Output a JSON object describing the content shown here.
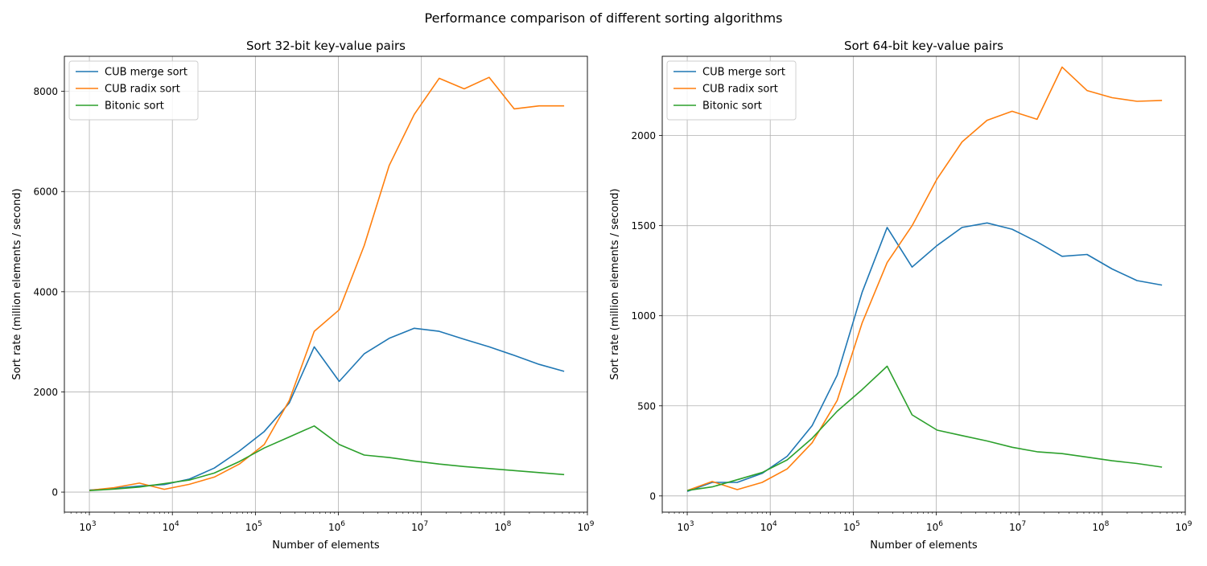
{
  "figure": {
    "suptitle": "Performance comparison of different sorting algorithms"
  },
  "chart_data": [
    {
      "type": "line",
      "title": "Sort 32-bit key-value pairs",
      "xlabel": "Number of elements",
      "ylabel": "Sort rate (million elements / second)",
      "xscale": "log",
      "xlim": [
        500,
        1000000000
      ],
      "ylim": [
        -400,
        8700
      ],
      "xticks": [
        1000,
        10000,
        100000,
        1000000,
        10000000,
        100000000,
        1000000000
      ],
      "xtick_labels": [
        {
          "base": "10",
          "exp": "3"
        },
        {
          "base": "10",
          "exp": "4"
        },
        {
          "base": "10",
          "exp": "5"
        },
        {
          "base": "10",
          "exp": "6"
        },
        {
          "base": "10",
          "exp": "7"
        },
        {
          "base": "10",
          "exp": "8"
        },
        {
          "base": "10",
          "exp": "9"
        }
      ],
      "yticks": [
        0,
        2000,
        4000,
        6000,
        8000
      ],
      "ytick_labels": [
        "0",
        "2000",
        "4000",
        "6000",
        "8000"
      ],
      "grid": true,
      "legend_position": "top-left",
      "x": [
        1000,
        2000,
        4000,
        8000,
        16000,
        32000,
        64000,
        128000,
        256000,
        512000,
        1024000,
        2048000,
        4096000,
        8192000,
        16384000,
        32768000,
        65536000,
        131072000,
        262144000,
        524288000
      ],
      "series": [
        {
          "name": "CUB merge sort",
          "color": "#1f77b4",
          "values": [
            40,
            75,
            120,
            150,
            260,
            480,
            820,
            1210,
            1780,
            2900,
            2210,
            2760,
            3070,
            3270,
            3210,
            3050,
            2900,
            2730,
            2550,
            2410
          ]
        },
        {
          "name": "CUB radix sort",
          "color": "#ff7f0e",
          "values": [
            35,
            90,
            180,
            55,
            155,
            300,
            560,
            950,
            1830,
            3210,
            3640,
            4920,
            6520,
            7540,
            8260,
            8050,
            8280,
            7650,
            7710,
            7710
          ]
        },
        {
          "name": "Bitonic sort",
          "color": "#2ca02c",
          "values": [
            30,
            60,
            100,
            170,
            240,
            380,
            610,
            880,
            1100,
            1320,
            950,
            740,
            690,
            620,
            560,
            510,
            470,
            430,
            390,
            350
          ]
        }
      ]
    },
    {
      "type": "line",
      "title": "Sort 64-bit key-value pairs",
      "xlabel": "Number of elements",
      "ylabel": "Sort rate (million elements / second)",
      "xscale": "log",
      "xlim": [
        500,
        1000000000
      ],
      "ylim": [
        -90,
        2440
      ],
      "xticks": [
        1000,
        10000,
        100000,
        1000000,
        10000000,
        100000000,
        1000000000
      ],
      "xtick_labels": [
        {
          "base": "10",
          "exp": "3"
        },
        {
          "base": "10",
          "exp": "4"
        },
        {
          "base": "10",
          "exp": "5"
        },
        {
          "base": "10",
          "exp": "6"
        },
        {
          "base": "10",
          "exp": "7"
        },
        {
          "base": "10",
          "exp": "8"
        },
        {
          "base": "10",
          "exp": "9"
        }
      ],
      "yticks": [
        0,
        500,
        1000,
        1500,
        2000
      ],
      "ytick_labels": [
        "0",
        "500",
        "1000",
        "1500",
        "2000"
      ],
      "grid": true,
      "legend_position": "top-left",
      "x": [
        1000,
        2000,
        4000,
        8000,
        16000,
        32000,
        64000,
        128000,
        256000,
        512000,
        1024000,
        2048000,
        4096000,
        8192000,
        16384000,
        32768000,
        65536000,
        131072000,
        262144000,
        524288000
      ],
      "series": [
        {
          "name": "CUB merge sort",
          "color": "#1f77b4",
          "values": [
            25,
            75,
            75,
            125,
            220,
            390,
            670,
            1130,
            1490,
            1270,
            1390,
            1490,
            1515,
            1480,
            1410,
            1330,
            1340,
            1260,
            1195,
            1170
          ]
        },
        {
          "name": "CUB radix sort",
          "color": "#ff7f0e",
          "values": [
            30,
            80,
            35,
            75,
            150,
            295,
            530,
            960,
            1295,
            1500,
            1760,
            1965,
            2085,
            2135,
            2090,
            2380,
            2250,
            2210,
            2190,
            2195
          ]
        },
        {
          "name": "Bitonic sort",
          "color": "#2ca02c",
          "values": [
            30,
            50,
            90,
            130,
            200,
            320,
            470,
            590,
            720,
            450,
            365,
            335,
            305,
            270,
            245,
            235,
            215,
            195,
            180,
            160
          ]
        }
      ]
    }
  ]
}
